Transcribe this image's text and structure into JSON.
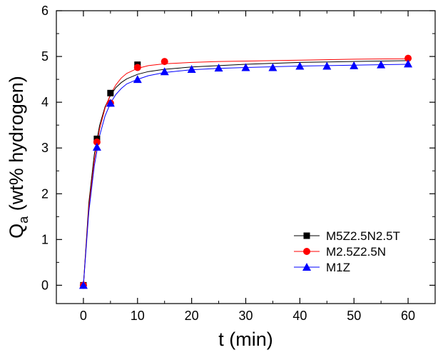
{
  "chart_data": {
    "type": "line",
    "xlabel": "t (min)",
    "ylabel": {
      "main": "Q",
      "sub": "a",
      "rest": " (wt% hydrogen)"
    },
    "xlim": [
      -5,
      65
    ],
    "ylim": [
      -0.4,
      6
    ],
    "x_ticks": [
      0,
      10,
      20,
      30,
      40,
      50,
      60
    ],
    "y_ticks": [
      0,
      1,
      2,
      3,
      4,
      5,
      6
    ],
    "legend_position": "bottom-right",
    "grid": false,
    "series": [
      {
        "name": "M5Z2.5N2.5T",
        "color": "#000000",
        "marker": "square",
        "points": [
          [
            0,
            0
          ],
          [
            2.5,
            3.2
          ],
          [
            5,
            4.2
          ],
          [
            10,
            4.82
          ]
        ],
        "fit": [
          [
            0,
            0
          ],
          [
            1,
            1.8
          ],
          [
            2,
            2.85
          ],
          [
            3,
            3.5
          ],
          [
            4,
            3.9
          ],
          [
            5,
            4.15
          ],
          [
            6,
            4.32
          ],
          [
            7,
            4.43
          ],
          [
            8,
            4.51
          ],
          [
            10,
            4.61
          ],
          [
            12,
            4.67
          ],
          [
            15,
            4.72
          ],
          [
            20,
            4.77
          ],
          [
            25,
            4.8
          ],
          [
            30,
            4.83
          ],
          [
            40,
            4.87
          ],
          [
            50,
            4.89
          ],
          [
            60,
            4.91
          ]
        ]
      },
      {
        "name": "M2.5Z2.5N",
        "color": "#ff0000",
        "marker": "circle",
        "points": [
          [
            0,
            0
          ],
          [
            2.5,
            3.13
          ],
          [
            5,
            3.98
          ],
          [
            10,
            4.76
          ],
          [
            15,
            4.89
          ],
          [
            60,
            4.96
          ]
        ],
        "fit": [
          [
            0,
            0
          ],
          [
            1,
            1.7
          ],
          [
            2,
            2.72
          ],
          [
            3,
            3.42
          ],
          [
            4,
            3.87
          ],
          [
            5,
            4.17
          ],
          [
            6,
            4.38
          ],
          [
            7,
            4.53
          ],
          [
            8,
            4.63
          ],
          [
            10,
            4.74
          ],
          [
            12,
            4.8
          ],
          [
            15,
            4.84
          ],
          [
            20,
            4.87
          ],
          [
            25,
            4.89
          ],
          [
            30,
            4.9
          ],
          [
            40,
            4.92
          ],
          [
            50,
            4.94
          ],
          [
            60,
            4.95
          ]
        ]
      },
      {
        "name": "M1Z",
        "color": "#0000ff",
        "marker": "triangle",
        "points": [
          [
            0,
            0
          ],
          [
            2.5,
            3.02
          ],
          [
            5,
            3.98
          ],
          [
            10,
            4.5
          ],
          [
            15,
            4.67
          ],
          [
            20,
            4.72
          ],
          [
            25,
            4.75
          ],
          [
            30,
            4.76
          ],
          [
            35,
            4.76
          ],
          [
            40,
            4.79
          ],
          [
            45,
            4.79
          ],
          [
            50,
            4.8
          ],
          [
            55,
            4.82
          ],
          [
            60,
            4.84
          ]
        ],
        "fit": [
          [
            0,
            0
          ],
          [
            1,
            1.6
          ],
          [
            2,
            2.6
          ],
          [
            3,
            3.27
          ],
          [
            4,
            3.7
          ],
          [
            5,
            3.98
          ],
          [
            6,
            4.17
          ],
          [
            7,
            4.3
          ],
          [
            8,
            4.4
          ],
          [
            10,
            4.5
          ],
          [
            12,
            4.58
          ],
          [
            15,
            4.65
          ],
          [
            20,
            4.71
          ],
          [
            25,
            4.74
          ],
          [
            30,
            4.76
          ],
          [
            40,
            4.79
          ],
          [
            50,
            4.81
          ],
          [
            60,
            4.83
          ]
        ]
      }
    ]
  }
}
